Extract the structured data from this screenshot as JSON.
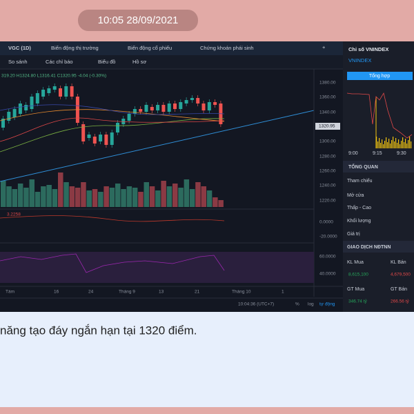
{
  "timestamp": "10:05 28/09/2021",
  "toolbar": {
    "symbol": "VGC (1D)",
    "tabs": [
      "Biến động thị trường",
      "Biến động cổ phiếu",
      "Chứng khoán phái sinh"
    ],
    "plus": "+"
  },
  "chart_toolbar": [
    "So sánh",
    "Các chỉ báo",
    "Biểu đồ",
    "Hồ sơ"
  ],
  "ohlc": "319.20 H1324.80 L1316.41 C1320.95 -4.04 (-0.30%)",
  "price_axis": [
    "1380.00",
    "1360.00",
    "1340.00",
    "1300.00",
    "1280.00",
    "1260.00",
    "1240.00",
    "1220.00"
  ],
  "last_price": "1320.95",
  "indicator_value": "3.2258",
  "indicator_axis": [
    "0.0000",
    "-20.0000"
  ],
  "rsi_axis": [
    "60.0000",
    "40.0000"
  ],
  "date_axis": [
    "Tám",
    "16",
    "24",
    "Tháng 9",
    "13",
    "21",
    "Tháng 10",
    "1"
  ],
  "status_bar": {
    "time": "10:04:36 (UTC+7)",
    "percent": "%",
    "log": "log",
    "auto": "tự động"
  },
  "side_panel": {
    "title": "Chỉ số VNINDEX",
    "index": "VNINDEX",
    "button": "Tổng hợp",
    "times": [
      "9:00",
      "9:15",
      "9:30"
    ],
    "overview_header": "TỔNG QUAN",
    "overview_rows": [
      "Tham chiếu",
      "Mở cửa",
      "Thấp - Cao",
      "Khối lượng",
      "Giá trị"
    ],
    "foreign_header": "GIAO DỊCH NĐTNN",
    "kl_buy_label": "KL Mua",
    "kl_sell_label": "KL Bán",
    "kl_buy": "8,615,100",
    "kl_sell": "4,679,500",
    "gt_buy_label": "GT Mua",
    "gt_sell_label": "GT Bán",
    "gt_buy": "346.74 tỷ",
    "gt_sell": "266.56 tỷ"
  },
  "message": "năng tạo đáy ngắn hạn tại 1320 điểm."
}
